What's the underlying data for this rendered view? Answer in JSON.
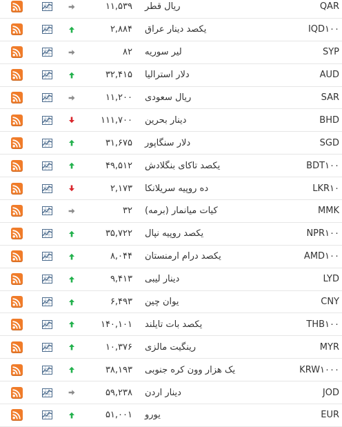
{
  "colors": {
    "rss": "#f07c2a",
    "up": "#22b14c",
    "down": "#d9262c",
    "flat": "#8a8a8a",
    "chart_icon": "#4a6a8c"
  },
  "rows": [
    {
      "code": "QAR",
      "name": "ریال قطر",
      "value": "۱۱,۵۳۹",
      "trend": "flat"
    },
    {
      "code": "IQD۱۰۰",
      "name": "یکصد دینار عراق",
      "value": "۲,۸۸۴",
      "trend": "up"
    },
    {
      "code": "SYP",
      "name": "لیر سوریه",
      "value": "۸۲",
      "trend": "flat"
    },
    {
      "code": "AUD",
      "name": "دلار استرالیا",
      "value": "۳۲,۴۱۵",
      "trend": "up"
    },
    {
      "code": "SAR",
      "name": "ریال سعودی",
      "value": "۱۱,۲۰۰",
      "trend": "flat"
    },
    {
      "code": "BHD",
      "name": "دینار بحرین",
      "value": "۱۱۱,۷۰۰",
      "trend": "down"
    },
    {
      "code": "SGD",
      "name": "دلار سنگاپور",
      "value": "۳۱,۶۷۵",
      "trend": "up"
    },
    {
      "code": "BDT۱۰۰",
      "name": "یکصد تاکای بنگلادش",
      "value": "۴۹,۵۱۲",
      "trend": "up"
    },
    {
      "code": "LKR۱۰",
      "name": "ده روپیه سریلانکا",
      "value": "۲,۱۷۳",
      "trend": "down"
    },
    {
      "code": "MMK",
      "name": "کیات میانمار (برمه)",
      "value": "۳۲",
      "trend": "flat"
    },
    {
      "code": "NPR۱۰۰",
      "name": "یکصد روپیه نپال",
      "value": "۳۵,۷۲۲",
      "trend": "up"
    },
    {
      "code": "AMD۱۰۰",
      "name": "یکصد درام ارمنستان",
      "value": "۸,۰۴۴",
      "trend": "up"
    },
    {
      "code": "LYD",
      "name": "دینار لیبی",
      "value": "۹,۴۱۳",
      "trend": "up"
    },
    {
      "code": "CNY",
      "name": "یوان چین",
      "value": "۶,۴۹۳",
      "trend": "up"
    },
    {
      "code": "THB۱۰۰",
      "name": "یکصد بات تایلند",
      "value": "۱۴۰,۱۰۱",
      "trend": "up"
    },
    {
      "code": "MYR",
      "name": "رینگیت مالزی",
      "value": "۱۰,۳۷۶",
      "trend": "up"
    },
    {
      "code": "KRW۱۰۰۰",
      "name": "یک هزار وون کره جنوبی",
      "value": "۳۸,۱۹۳",
      "trend": "up"
    },
    {
      "code": "JOD",
      "name": "دینار اردن",
      "value": "۵۹,۲۳۸",
      "trend": "flat"
    },
    {
      "code": "EUR",
      "name": "یورو",
      "value": "۵۱,۰۰۱",
      "trend": "up"
    }
  ]
}
